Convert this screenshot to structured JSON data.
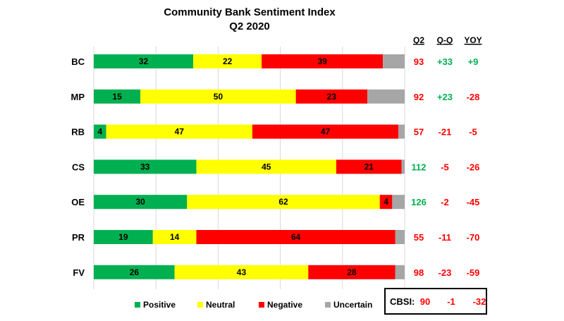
{
  "chart_data": {
    "type": "bar",
    "orientation": "horizontal",
    "stacked": true,
    "title": "Community Bank Sentiment Index",
    "subtitle": "Q2 2020",
    "categories": [
      "BC",
      "MP",
      "RB",
      "CS",
      "OE",
      "PR",
      "FV"
    ],
    "series": [
      {
        "name": "Positive",
        "color": "#00b050",
        "values": [
          32,
          15,
          4,
          33,
          30,
          19,
          26
        ]
      },
      {
        "name": "Neutral",
        "color": "#ffff00",
        "values": [
          22,
          50,
          47,
          45,
          62,
          14,
          43
        ]
      },
      {
        "name": "Negative",
        "color": "#ff0000",
        "values": [
          39,
          23,
          47,
          21,
          4,
          64,
          28
        ]
      },
      {
        "name": "Uncertain",
        "color": "#a6a6a6",
        "values": [
          7,
          12,
          2,
          1,
          4,
          3,
          3
        ]
      }
    ],
    "xlim": [
      0,
      100
    ],
    "grid": true,
    "legend": "bottom",
    "columns": {
      "headers": [
        "Q2",
        "Q-Q",
        "YOY"
      ],
      "rows": [
        [
          "93",
          "+33",
          "+9"
        ],
        [
          "92",
          "+23",
          "-28"
        ],
        [
          "57",
          "-21",
          "-5"
        ],
        [
          "112",
          "-5",
          "-26"
        ],
        [
          "126",
          "-2",
          "-45"
        ],
        [
          "55",
          "-11",
          "-70"
        ],
        [
          "98",
          "-23",
          "-59"
        ]
      ]
    },
    "summary": {
      "label": "CBSI:",
      "values": [
        "90",
        "-1",
        "-32"
      ]
    }
  },
  "colors": {
    "positive_text": "#00b050",
    "negative_text": "#ff0000",
    "grid": "#d9d9d9"
  }
}
